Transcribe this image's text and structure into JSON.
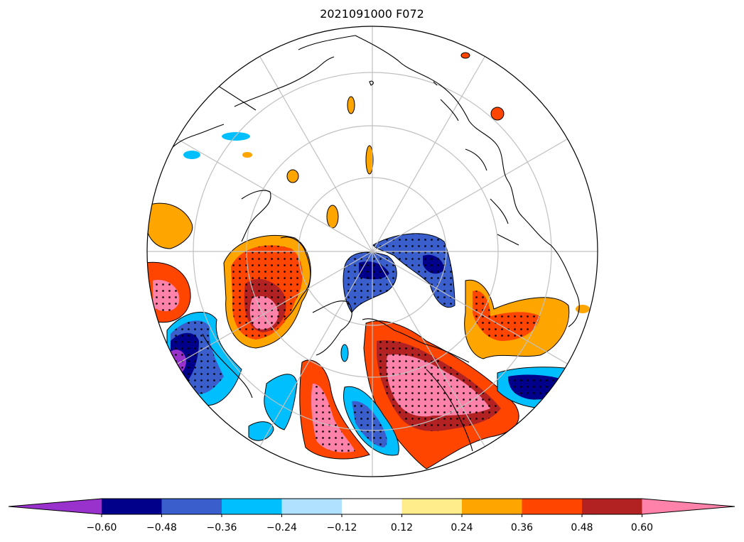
{
  "title": "2021091000 F072",
  "projection": "north-polar-stereographic",
  "colorbar": {
    "colors": [
      "#9932CC",
      "#00008B",
      "#3A5FCD",
      "#00BFFF",
      "#B0E2FF",
      "#FFFFFF",
      "#FFEC8B",
      "#FFA500",
      "#FF4500",
      "#B22222",
      "#FF82AB"
    ],
    "extend": "both",
    "boundaries": [
      -0.6,
      -0.48,
      -0.36,
      -0.24,
      -0.12,
      0.12,
      0.24,
      0.36,
      0.48,
      0.6
    ],
    "tick_labels": [
      "−0.60",
      "−0.48",
      "−0.36",
      "−0.24",
      "−0.12",
      "0.12",
      "0.24",
      "0.36",
      "0.48",
      "0.60"
    ]
  }
}
